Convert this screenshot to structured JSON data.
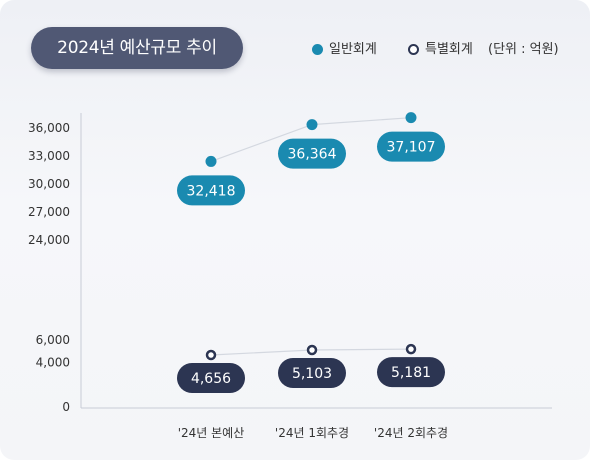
{
  "title": "2024년 예산규모 추이",
  "unit": "(단위 : 억원)",
  "chart_data": {
    "type": "line",
    "categories": [
      "'24년 본예산",
      "'24년 1회추경",
      "'24년 2회추경"
    ],
    "series": [
      {
        "name": "일반회계",
        "values": [
          32418,
          36364,
          37107
        ],
        "labels": [
          "32,418",
          "36,364",
          "37,107"
        ],
        "color": "#1a8ab0"
      },
      {
        "name": "특별회계",
        "values": [
          4656,
          5103,
          5181
        ],
        "labels": [
          "4,656",
          "5,103",
          "5,181"
        ],
        "color": "#2c3552"
      }
    ],
    "y_ticks_upper": [
      "36,000",
      "33,000",
      "30,000",
      "27,000",
      "24,000"
    ],
    "y_ticks_lower": [
      "6,000",
      "4,000",
      "0"
    ],
    "axis_break": [
      6000,
      24000
    ],
    "legend_position": "top-right",
    "grid": false
  }
}
